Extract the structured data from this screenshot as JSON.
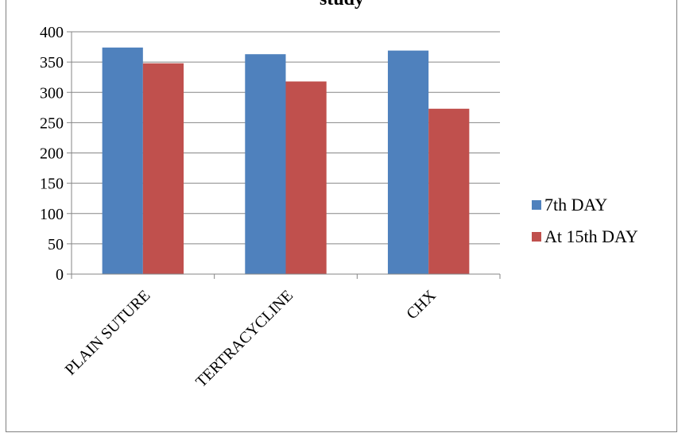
{
  "chart_data": {
    "type": "bar",
    "title": "study",
    "categories": [
      "PLAIN SUTURE",
      "TERTRACYCLINE",
      "CHX"
    ],
    "series": [
      {
        "name": "7th DAY",
        "values": [
          374,
          363,
          369
        ],
        "color": "#4f81bd"
      },
      {
        "name": "At 15th  DAY",
        "values": [
          348,
          318,
          273
        ],
        "color": "#c0504d"
      }
    ],
    "ylim": [
      0,
      400
    ],
    "yticks": [
      0,
      50,
      100,
      150,
      200,
      250,
      300,
      350,
      400
    ],
    "grid": true,
    "legend": "right",
    "gridline_color": "#868686"
  }
}
